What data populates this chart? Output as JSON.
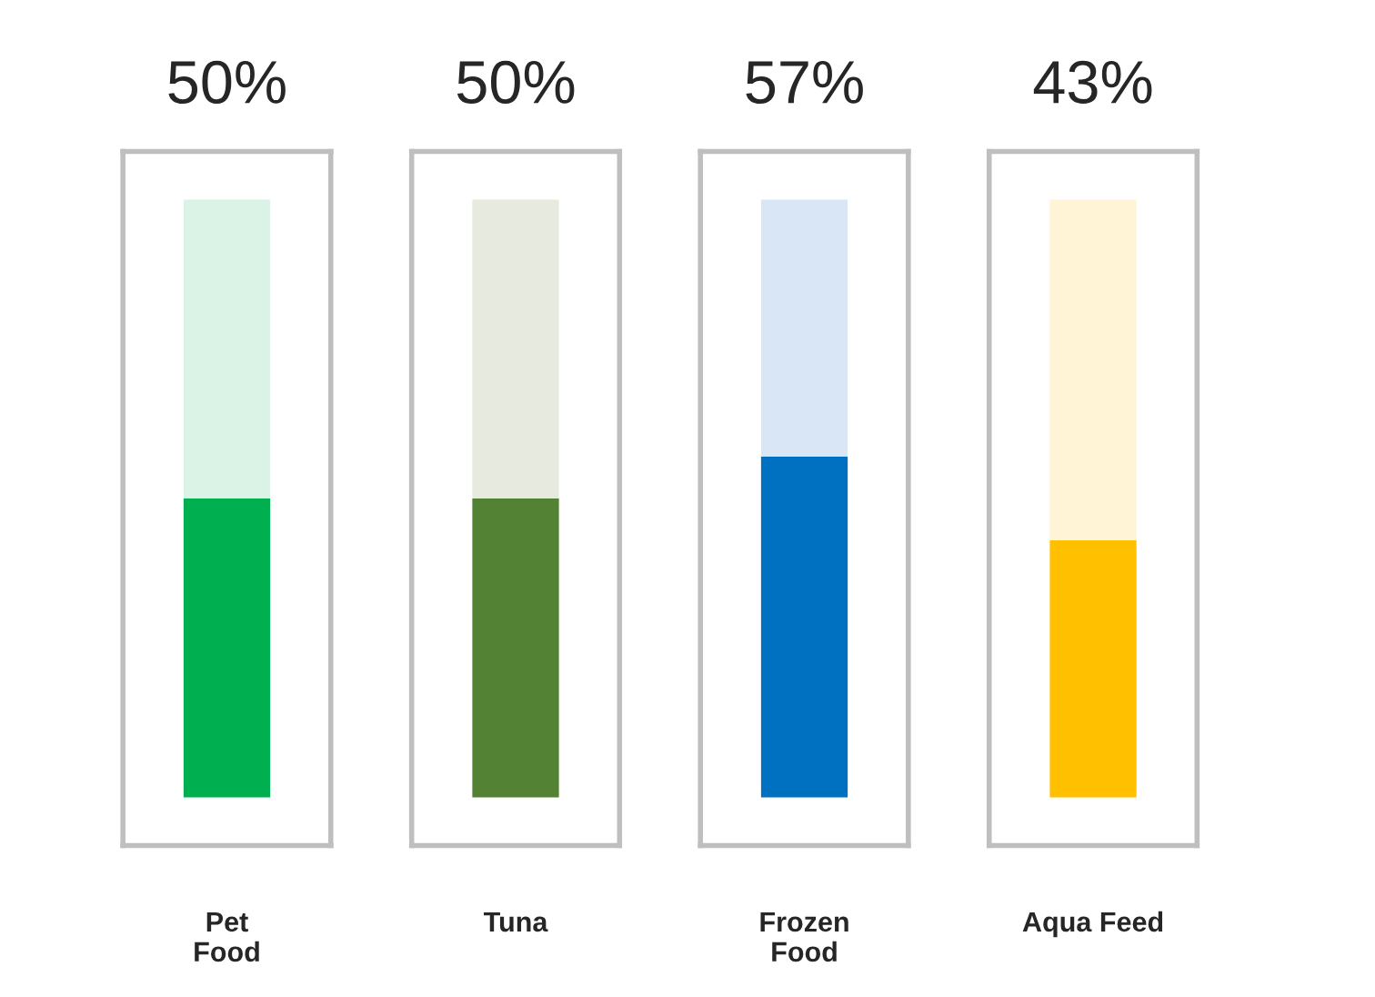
{
  "chart_data": {
    "type": "bar",
    "stacked": true,
    "categories": [
      "Pet\nFood",
      "Tuna",
      "Frozen\nFood",
      "Aqua Feed"
    ],
    "series": [
      {
        "values": [
          50,
          50,
          57,
          43
        ],
        "colors": [
          "#00b050",
          "#548235",
          "#0070c0",
          "#ffc000"
        ],
        "value_labels": [
          "50%",
          "50%",
          "57%",
          "43%"
        ]
      },
      {
        "values": [
          50,
          50,
          43,
          57
        ],
        "colors": [
          "#dbf3e6",
          "#e6eadf",
          "#d9e6f5",
          "#fff4d6"
        ]
      }
    ],
    "ylim": [
      0,
      100
    ],
    "tick_labels": "x",
    "grid": false,
    "legend": false
  }
}
